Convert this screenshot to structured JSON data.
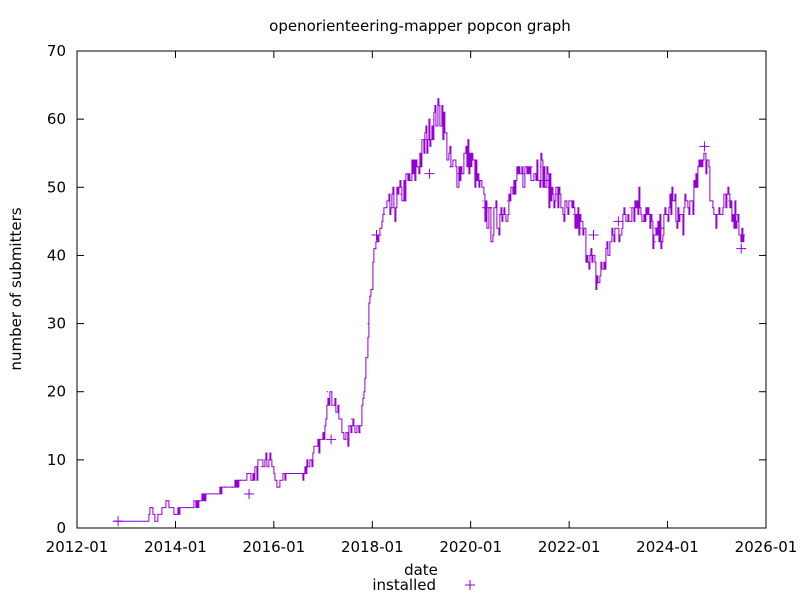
{
  "chart_data": {
    "type": "line",
    "title": "openorienteering-mapper popcon graph",
    "xlabel": "date",
    "ylabel": "number of submitters",
    "x_axis_type": "date",
    "xlim": [
      "2012-01-01",
      "2026-01-01"
    ],
    "ylim": [
      0,
      70
    ],
    "x_ticks": [
      "2012-01",
      "2014-01",
      "2016-01",
      "2018-01",
      "2020-01",
      "2022-01",
      "2024-01",
      "2026-01"
    ],
    "y_ticks": [
      0,
      10,
      20,
      30,
      40,
      50,
      60,
      70
    ],
    "grid": false,
    "legend_position": "bottom-center",
    "series": [
      {
        "name": "installed",
        "color": "#9400d3",
        "marker": "plus",
        "x": [
          "2012-10-01",
          "2013-02-01",
          "2013-06-01",
          "2013-07-01",
          "2013-08-01",
          "2013-11-01",
          "2014-01-01",
          "2014-04-01",
          "2014-07-01",
          "2014-09-01",
          "2014-11-01",
          "2015-01-01",
          "2015-03-01",
          "2015-05-01",
          "2015-06-01",
          "2015-08-01",
          "2015-10-01",
          "2015-12-01",
          "2016-02-01",
          "2016-04-01",
          "2016-06-01",
          "2016-08-01",
          "2016-10-01",
          "2016-12-01",
          "2017-01-01",
          "2017-02-01",
          "2017-04-01",
          "2017-06-01",
          "2017-07-01",
          "2017-08-01",
          "2017-10-01",
          "2017-12-01",
          "2018-02-01",
          "2018-04-01",
          "2018-06-01",
          "2018-08-01",
          "2018-10-01",
          "2018-12-01",
          "2019-02-01",
          "2019-04-01",
          "2019-06-01",
          "2019-08-01",
          "2019-10-01",
          "2019-12-01",
          "2020-02-01",
          "2020-04-01",
          "2020-06-01",
          "2020-08-01",
          "2020-10-01",
          "2020-12-01",
          "2021-02-01",
          "2021-04-01",
          "2021-06-01",
          "2021-08-01",
          "2021-10-01",
          "2021-12-01",
          "2022-02-01",
          "2022-04-01",
          "2022-06-01",
          "2022-08-01",
          "2022-10-01",
          "2022-12-01",
          "2023-02-01",
          "2023-04-01",
          "2023-06-01",
          "2023-08-01",
          "2023-10-01",
          "2023-12-01",
          "2024-02-01",
          "2024-04-01",
          "2024-06-01",
          "2024-08-01",
          "2024-10-01",
          "2024-12-01",
          "2025-02-01",
          "2025-04-01",
          "2025-06-01",
          "2025-08-01"
        ],
        "values": [
          1,
          1,
          1,
          3,
          1,
          4,
          2,
          3,
          4,
          5,
          5,
          6,
          6,
          7,
          7,
          8,
          9,
          10,
          6,
          8,
          8,
          8,
          10,
          12,
          13,
          20,
          18,
          14,
          13,
          16,
          14,
          30,
          42,
          46,
          47,
          49,
          51,
          53,
          57,
          60,
          61,
          53,
          52,
          55,
          52,
          48,
          44,
          46,
          48,
          50,
          52,
          53,
          53,
          50,
          49,
          46,
          46,
          44,
          40,
          36,
          40,
          43,
          45,
          47,
          48,
          46,
          42,
          44,
          48,
          45,
          47,
          50,
          56,
          47,
          46,
          48,
          46,
          41
        ]
      }
    ],
    "markers": [
      {
        "x": "2012-11-01",
        "y": 1
      },
      {
        "x": "2015-07-01",
        "y": 5
      },
      {
        "x": "2017-03-01",
        "y": 13
      },
      {
        "x": "2018-02-01",
        "y": 43
      },
      {
        "x": "2019-03-01",
        "y": 52
      },
      {
        "x": "2020-05-01",
        "y": 47
      },
      {
        "x": "2021-07-01",
        "y": 51
      },
      {
        "x": "2022-07-01",
        "y": 43
      },
      {
        "x": "2023-01-01",
        "y": 45
      },
      {
        "x": "2023-11-01",
        "y": 44
      },
      {
        "x": "2024-10-01",
        "y": 56
      },
      {
        "x": "2025-07-01",
        "y": 41
      }
    ]
  }
}
